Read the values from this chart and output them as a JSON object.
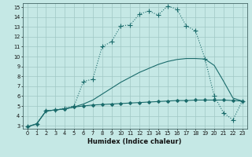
{
  "xlabel": "Humidex (Indice chaleur)",
  "bg_color": "#c5e8e5",
  "line_color": "#1a6b6b",
  "grid_color": "#a0c8c5",
  "xlim": [
    -0.5,
    23.5
  ],
  "ylim": [
    2.7,
    15.4
  ],
  "yticks": [
    3,
    4,
    5,
    6,
    7,
    8,
    9,
    10,
    11,
    12,
    13,
    14,
    15
  ],
  "xticks": [
    0,
    1,
    2,
    3,
    4,
    5,
    6,
    7,
    8,
    9,
    10,
    11,
    12,
    13,
    14,
    15,
    16,
    17,
    18,
    19,
    20,
    21,
    22,
    23
  ],
  "curves": [
    {
      "x": [
        0,
        1,
        2,
        3,
        4,
        5,
        6,
        7,
        8,
        9,
        10,
        11,
        12,
        13,
        14,
        15,
        16,
        17,
        18,
        19,
        20,
        21,
        22,
        23
      ],
      "y": [
        2.9,
        3.2,
        4.5,
        4.6,
        4.7,
        4.9,
        5.0,
        5.1,
        5.15,
        5.2,
        5.25,
        5.3,
        5.35,
        5.4,
        5.45,
        5.5,
        5.55,
        5.55,
        5.6,
        5.6,
        5.6,
        5.6,
        5.55,
        5.5
      ],
      "marker": "D",
      "ms": 2.0,
      "lw": 0.8,
      "linestyle": "-"
    },
    {
      "x": [
        0,
        1,
        2,
        3,
        4,
        5,
        6,
        7,
        8,
        9,
        10,
        11,
        12,
        13,
        14,
        15,
        16,
        17,
        18,
        19,
        20,
        21,
        22,
        23
      ],
      "y": [
        2.9,
        3.2,
        4.5,
        4.6,
        4.7,
        4.9,
        5.2,
        5.6,
        6.2,
        6.8,
        7.4,
        7.9,
        8.4,
        8.8,
        9.2,
        9.5,
        9.7,
        9.8,
        9.8,
        9.75,
        9.1,
        7.5,
        5.8,
        5.5
      ],
      "marker": null,
      "ms": 0,
      "lw": 0.8,
      "linestyle": "-"
    },
    {
      "x": [
        0,
        1,
        2,
        3,
        4,
        5,
        6,
        7,
        8,
        9,
        10,
        11,
        12,
        13,
        14,
        15,
        16,
        17,
        18,
        19,
        20,
        21,
        22,
        23
      ],
      "y": [
        2.9,
        3.2,
        4.5,
        4.6,
        4.8,
        5.0,
        7.5,
        7.7,
        11.0,
        11.5,
        13.1,
        13.2,
        14.3,
        14.6,
        14.2,
        15.1,
        14.8,
        13.1,
        12.6,
        9.8,
        6.0,
        4.3,
        3.6,
        5.5
      ],
      "marker": "+",
      "ms": 4.5,
      "lw": 0.8,
      "linestyle": ":"
    }
  ]
}
